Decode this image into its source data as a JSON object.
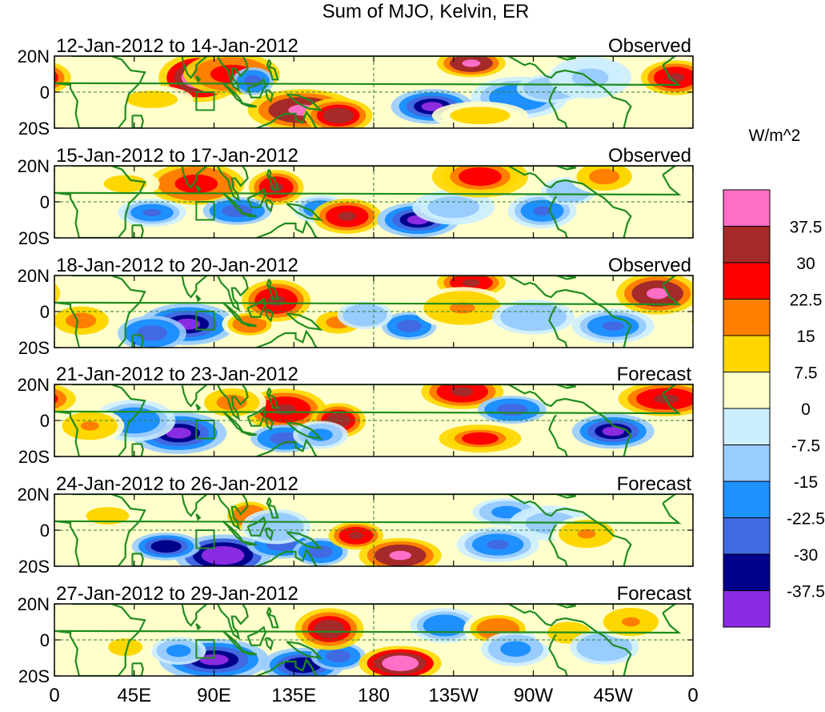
{
  "chart_data": {
    "type": "heatmap",
    "title": "Sum of MJO, Kelvin, ER",
    "colorbar": {
      "unit": "W/m^2",
      "levels": [
        "37.5",
        "30",
        "22.5",
        "15",
        "7.5",
        "0",
        "-7.5",
        "-15",
        "-22.5",
        "-30",
        "-37.5"
      ],
      "colors": [
        "#ff6ec7",
        "#a52a2a",
        "#ff0000",
        "#ff7f00",
        "#ffd700",
        "#ffffcc",
        "#cceeff",
        "#99ccff",
        "#1e90ff",
        "#4169e1",
        "#00008b",
        "#8a2be2"
      ]
    },
    "xticks": [
      "0",
      "45E",
      "90E",
      "135E",
      "180",
      "135W",
      "90W",
      "45W",
      "0"
    ],
    "yticks": [
      "20N",
      "0",
      "20S"
    ],
    "panels": [
      {
        "date_range": "12-Jan-2012 to 14-Jan-2012",
        "label": "Observed",
        "blobs": [
          [
            82,
            8,
            12,
            7,
            45
          ],
          [
            100,
            10,
            14,
            6,
            28
          ],
          [
            112,
            6,
            6,
            4,
            -28
          ],
          [
            140,
            -10,
            16,
            6,
            40
          ],
          [
            160,
            -13,
            10,
            5,
            36
          ],
          [
            213,
            -8,
            12,
            5,
            -40
          ],
          [
            235,
            16,
            10,
            4,
            40
          ],
          [
            262,
            -3,
            14,
            6,
            -22
          ],
          [
            280,
            2,
            10,
            4,
            -15
          ],
          [
            302,
            8,
            12,
            6,
            -10
          ],
          [
            350,
            8,
            10,
            5,
            30
          ],
          [
            240,
            -13,
            14,
            4,
            12
          ],
          [
            55,
            -4,
            12,
            4,
            10
          ]
        ]
      },
      {
        "date_range": "15-Jan-2012 to 17-Jan-2012",
        "label": "Observed",
        "blobs": [
          [
            80,
            10,
            14,
            6,
            28
          ],
          [
            125,
            8,
            8,
            5,
            32
          ],
          [
            103,
            -5,
            10,
            4,
            -30
          ],
          [
            150,
            -4,
            8,
            4,
            -22
          ],
          [
            165,
            -8,
            10,
            5,
            30
          ],
          [
            205,
            -10,
            12,
            5,
            -40
          ],
          [
            225,
            -3,
            12,
            5,
            -12
          ],
          [
            240,
            14,
            14,
            6,
            25
          ],
          [
            275,
            -5,
            10,
            5,
            -25
          ],
          [
            290,
            6,
            8,
            4,
            -15
          ],
          [
            310,
            14,
            10,
            5,
            18
          ],
          [
            55,
            -6,
            10,
            4,
            -25
          ],
          [
            40,
            10,
            10,
            4,
            12
          ]
        ]
      },
      {
        "date_range": "18-Jan-2012 to 20-Jan-2012",
        "label": "Observed",
        "blobs": [
          [
            75,
            -7,
            14,
            6,
            -40
          ],
          [
            55,
            -12,
            10,
            5,
            -30
          ],
          [
            110,
            -7,
            8,
            4,
            20
          ],
          [
            125,
            6,
            10,
            6,
            30
          ],
          [
            160,
            -6,
            8,
            4,
            18
          ],
          [
            200,
            -8,
            8,
            4,
            -30
          ],
          [
            175,
            -2,
            8,
            4,
            -15
          ],
          [
            235,
            16,
            10,
            4,
            30
          ],
          [
            230,
            2,
            14,
            6,
            15
          ],
          [
            270,
            -3,
            12,
            5,
            -15
          ],
          [
            315,
            -8,
            12,
            5,
            -25
          ],
          [
            340,
            10,
            12,
            6,
            40
          ],
          [
            15,
            -5,
            10,
            5,
            18
          ]
        ]
      },
      {
        "date_range": "21-Jan-2012 to 23-Jan-2012",
        "label": "Forecast",
        "blobs": [
          [
            70,
            -7,
            14,
            6,
            -40
          ],
          [
            45,
            0,
            12,
            6,
            -22
          ],
          [
            130,
            6,
            12,
            6,
            30
          ],
          [
            100,
            10,
            10,
            5,
            18
          ],
          [
            160,
            0,
            8,
            5,
            35
          ],
          [
            130,
            -10,
            10,
            4,
            -28
          ],
          [
            150,
            -8,
            8,
            4,
            -20
          ],
          [
            230,
            16,
            12,
            5,
            30
          ],
          [
            240,
            -10,
            12,
            4,
            25
          ],
          [
            258,
            6,
            10,
            4,
            -30
          ],
          [
            315,
            -6,
            12,
            5,
            -40
          ],
          [
            345,
            12,
            14,
            5,
            30
          ],
          [
            20,
            -3,
            10,
            5,
            15
          ]
        ]
      },
      {
        "date_range": "24-Jan-2012 to 26-Jan-2012",
        "label": "Forecast",
        "blobs": [
          [
            95,
            -14,
            14,
            6,
            -42
          ],
          [
            63,
            -9,
            10,
            4,
            -34
          ],
          [
            128,
            -8,
            10,
            4,
            -30
          ],
          [
            150,
            -12,
            8,
            4,
            -28
          ],
          [
            170,
            -3,
            8,
            4,
            30
          ],
          [
            195,
            -14,
            12,
            5,
            40
          ],
          [
            110,
            8,
            8,
            5,
            22
          ],
          [
            125,
            2,
            10,
            5,
            -15
          ],
          [
            250,
            -8,
            12,
            5,
            -25
          ],
          [
            255,
            10,
            10,
            4,
            -18
          ],
          [
            280,
            4,
            12,
            5,
            -12
          ],
          [
            300,
            -2,
            10,
            5,
            15
          ],
          [
            30,
            8,
            10,
            4,
            10
          ]
        ]
      },
      {
        "date_range": "27-Jan-2012 to 29-Jan-2012",
        "label": "Forecast",
        "blobs": [
          [
            90,
            -11,
            16,
            6,
            -40
          ],
          [
            140,
            -14,
            12,
            5,
            -35
          ],
          [
            160,
            -9,
            8,
            4,
            -28
          ],
          [
            155,
            6,
            10,
            6,
            36
          ],
          [
            195,
            -13,
            12,
            5,
            42
          ],
          [
            70,
            -6,
            8,
            4,
            -20
          ],
          [
            220,
            8,
            10,
            5,
            -22
          ],
          [
            250,
            6,
            10,
            5,
            20
          ],
          [
            260,
            -5,
            10,
            5,
            -20
          ],
          [
            290,
            4,
            10,
            5,
            12
          ],
          [
            310,
            -4,
            10,
            5,
            -15
          ],
          [
            325,
            10,
            10,
            5,
            15
          ],
          [
            40,
            -4,
            8,
            4,
            10
          ]
        ]
      }
    ]
  }
}
